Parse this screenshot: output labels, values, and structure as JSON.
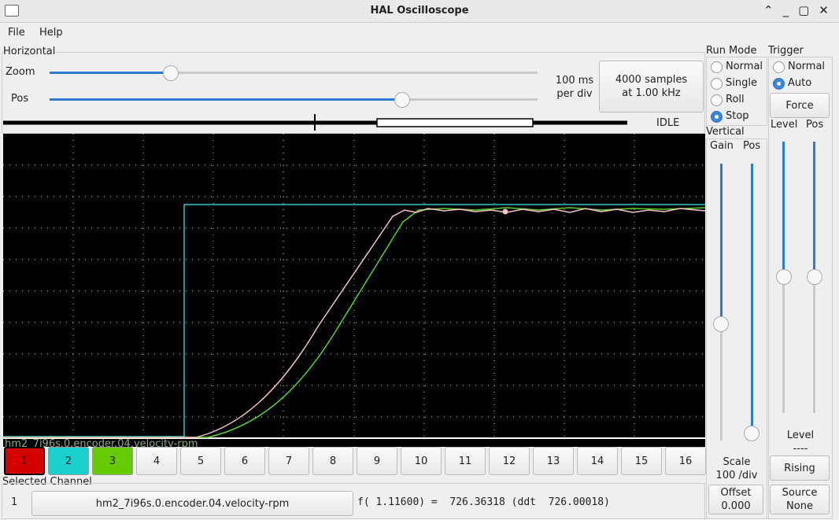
{
  "window": {
    "title": "HAL Oscilloscope"
  },
  "menu": [
    "File",
    "Help"
  ],
  "horizontal": {
    "label": "Horizontal",
    "zoom_label": "Zoom",
    "pos_label": "Pos",
    "time_per_div": [
      "100 ms",
      "per div"
    ],
    "samples_button": [
      "4000 samples",
      "at 1.00 kHz"
    ],
    "state": "IDLE"
  },
  "run_mode": {
    "label": "Run Mode",
    "options": [
      "Normal",
      "Single",
      "Roll",
      "Stop"
    ]
  },
  "trigger": {
    "label": "Trigger",
    "options": [
      "Normal",
      "Auto"
    ],
    "force": "Force",
    "level_label": "Level",
    "pos_label": "Pos",
    "level_title": "Level",
    "level_value": "----",
    "edge": "Rising",
    "source_label": "Source",
    "source_value": "None"
  },
  "vertical": {
    "label": "Vertical",
    "gain_label": "Gain",
    "pos_label": "Pos",
    "scale_label": "Scale",
    "scale_value": "100 /div",
    "offset_label": "Offset",
    "offset_value": "0.000"
  },
  "channels": [
    "1",
    "2",
    "3",
    "4",
    "5",
    "6",
    "7",
    "8",
    "9",
    "10",
    "11",
    "12",
    "13",
    "14",
    "15",
    "16"
  ],
  "selected_channel": {
    "label": "Selected Channel",
    "number": "1",
    "name": "hm2_7i96s.0.encoder.04.velocity-rpm",
    "readout": "f( 1.11600) =  726.36318 (ddt  726.00018)"
  }
}
